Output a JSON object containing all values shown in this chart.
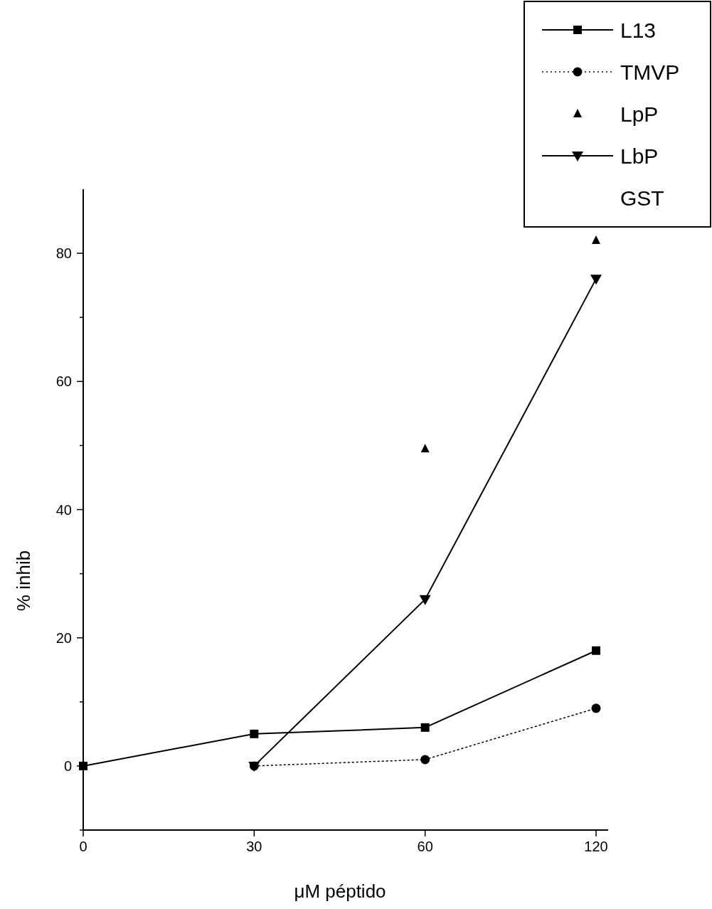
{
  "chart_data": {
    "type": "line",
    "xlabel": "μM péptido",
    "ylabel": "% inhib",
    "categories": [
      "0",
      "30",
      "60",
      "120"
    ],
    "ylim": [
      -10,
      90
    ],
    "yticks": [
      {
        "value": -10,
        "label": null
      },
      0,
      {
        "value": 10,
        "label": null
      },
      20,
      {
        "value": 30,
        "label": null
      },
      40,
      {
        "value": 50,
        "label": null
      },
      60,
      {
        "value": 70,
        "label": null
      },
      80
    ],
    "grid": false,
    "legend": "top right",
    "series": [
      {
        "name": "L13",
        "color": "#000000",
        "values": [
          0,
          5,
          6,
          18
        ],
        "marker": "square",
        "line_style": "solid"
      },
      {
        "name": "TMVP",
        "color": "#000000",
        "values": [
          null,
          0,
          1,
          9
        ],
        "marker": "circle",
        "line_style": "dotted"
      },
      {
        "name": "LpP",
        "type": "scatter",
        "color": "#000000",
        "values": [
          null,
          null,
          49.5,
          82
        ],
        "marker": "triangle"
      },
      {
        "name": "LbP",
        "color": "#000000",
        "values": [
          null,
          0,
          26,
          76
        ],
        "marker": "triangle-down",
        "line_style": "solid"
      },
      {
        "name": "GST",
        "type": "scatter",
        "values": [
          null,
          null,
          null,
          null
        ]
      }
    ]
  }
}
